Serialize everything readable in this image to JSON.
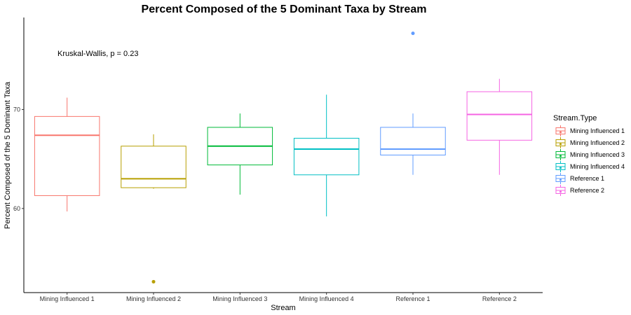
{
  "chart_data": {
    "type": "boxplot",
    "title": "Percent Composed of the 5 Dominant Taxa by Stream",
    "xlabel": "Stream",
    "ylabel": "Percent Composed of the 5 Dominant Taxa",
    "ylim": [
      51.5,
      79.3
    ],
    "yticks": [
      60,
      70
    ],
    "annotation": "Kruskal-Wallis, p = 0.23",
    "legend_title": "Stream.Type",
    "legend_position": "right",
    "grid": false,
    "categories": [
      "Mining Influenced 1",
      "Mining Influenced 2",
      "Mining Influenced 3",
      "Mining Influenced 4",
      "Reference 1",
      "Reference 2"
    ],
    "series": [
      {
        "name": "Mining Influenced 1",
        "color": "#F8766D",
        "lower_whisker": 59.7,
        "q1": 61.3,
        "median": 67.4,
        "q3": 69.3,
        "upper_whisker": 71.2,
        "outliers": []
      },
      {
        "name": "Mining Influenced 2",
        "color": "#B79F00",
        "lower_whisker": 62.0,
        "q1": 62.1,
        "median": 63.0,
        "q3": 66.3,
        "upper_whisker": 67.5,
        "outliers": [
          52.6
        ]
      },
      {
        "name": "Mining Influenced 3",
        "color": "#00BA38",
        "lower_whisker": 61.4,
        "q1": 64.4,
        "median": 66.3,
        "q3": 68.2,
        "upper_whisker": 69.6,
        "outliers": []
      },
      {
        "name": "Mining Influenced 4",
        "color": "#00BFC4",
        "lower_whisker": 59.2,
        "q1": 63.4,
        "median": 66.0,
        "q3": 67.1,
        "upper_whisker": 71.5,
        "outliers": []
      },
      {
        "name": "Reference 1",
        "color": "#619CFF",
        "lower_whisker": 63.4,
        "q1": 65.4,
        "median": 66.0,
        "q3": 68.2,
        "upper_whisker": 69.6,
        "outliers": [
          77.7
        ]
      },
      {
        "name": "Reference 2",
        "color": "#F564E3",
        "lower_whisker": 63.4,
        "q1": 66.9,
        "median": 69.5,
        "q3": 71.8,
        "upper_whisker": 73.1,
        "outliers": []
      }
    ]
  }
}
